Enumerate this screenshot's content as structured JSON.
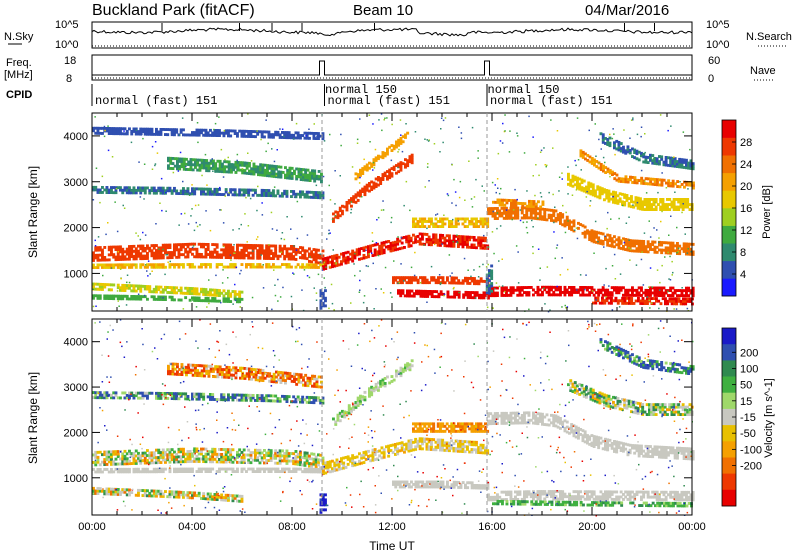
{
  "header": {
    "title": "Buckland Park (fitACF)",
    "beam": "Beam 10",
    "date": "04/Mar/2016"
  },
  "panels": {
    "sky": {
      "label": "N.Sky",
      "ticks": [
        "10^5",
        "10^0"
      ],
      "right_label": "N.Search",
      "right_ticks": [
        "10^5",
        "10^0"
      ]
    },
    "freq": {
      "label_line1": "Freq.",
      "label_line2": "[MHz]",
      "ticks": [
        "18",
        "8"
      ],
      "right_label": "Nave",
      "right_ticks": [
        "60",
        "0"
      ]
    },
    "cpid": {
      "label": "CPID",
      "segments": [
        {
          "text": "normal (fast) 151",
          "start_hour": 0,
          "row": 2
        },
        {
          "text": "normal 150",
          "start_hour": 9.2,
          "row": 1
        },
        {
          "text": "normal (fast) 151",
          "start_hour": 9.3,
          "row": 2
        },
        {
          "text": "normal 150",
          "start_hour": 15.7,
          "row": 1
        },
        {
          "text": "normal (fast) 151",
          "start_hour": 15.8,
          "row": 2
        }
      ]
    }
  },
  "chart_data": [
    {
      "type": "heatmap",
      "name": "power",
      "ylabel": "Slant Range [km]",
      "ylim": [
        180,
        4500
      ],
      "yticks": [
        1000,
        2000,
        3000,
        4000
      ],
      "xlim_hours": [
        0,
        24
      ],
      "colorbar": {
        "label": "Power [dB]",
        "ticks": [
          "4",
          "8",
          "12",
          "16",
          "20",
          "24",
          "28"
        ],
        "colors": [
          "#1a1aff",
          "#2f4fb0",
          "#2f8a6f",
          "#3faa3f",
          "#9fcf20",
          "#e8c800",
          "#f5a000",
          "#f07000",
          "#ee3800",
          "#e80000"
        ]
      },
      "bands": [
        {
          "t": [
            0,
            4,
            8,
            9.2
          ],
          "r": [
            1400,
            1480,
            1430,
            1330
          ],
          "w": 280,
          "v": 26
        },
        {
          "t": [
            0,
            4,
            8,
            9.2
          ],
          "r": [
            1150,
            1160,
            1160,
            1150
          ],
          "w": 90,
          "v": 18
        },
        {
          "t": [
            0,
            3,
            7,
            9.2
          ],
          "r": [
            2820,
            2800,
            2750,
            2700
          ],
          "w": 150,
          "v": 6
        },
        {
          "t": [
            3,
            6,
            9.2
          ],
          "r": [
            3400,
            3300,
            3100
          ],
          "w": 260,
          "v": 9
        },
        {
          "t": [
            0,
            5,
            9.2
          ],
          "r": [
            4100,
            4050,
            3980
          ],
          "w": 130,
          "v": 4
        },
        {
          "t": [
            0,
            2,
            4,
            6
          ],
          "r": [
            700,
            650,
            600,
            520
          ],
          "w": 130,
          "v": 15
        },
        {
          "t": [
            0,
            3,
            6
          ],
          "r": [
            480,
            450,
            400
          ],
          "w": 90,
          "v": 11
        },
        {
          "t": [
            9.2,
            11.2,
            13,
            15.8
          ],
          "r": [
            1200,
            1500,
            1750,
            1650
          ],
          "w": 260,
          "v": 27
        },
        {
          "t": [
            9.6,
            11,
            12.8
          ],
          "r": [
            2200,
            2850,
            3500
          ],
          "w": 180,
          "v": 25
        },
        {
          "t": [
            10.5,
            12.6
          ],
          "r": [
            3100,
            4000
          ],
          "w": 120,
          "v": 19
        },
        {
          "t": [
            12,
            14,
            15.8
          ],
          "r": [
            850,
            850,
            820
          ],
          "w": 150,
          "v": 26
        },
        {
          "t": [
            12.2,
            15.8
          ],
          "r": [
            550,
            500
          ],
          "w": 120,
          "v": 28
        },
        {
          "t": [
            12.8,
            15.8
          ],
          "r": [
            2100,
            2100
          ],
          "w": 200,
          "v": 18
        },
        {
          "t": [
            15.8,
            17.5,
            18.5,
            20,
            21.5,
            24
          ],
          "r": [
            2300,
            2320,
            2250,
            1800,
            1600,
            1520
          ],
          "w": 260,
          "v": 23
        },
        {
          "t": [
            15.8,
            18,
            24
          ],
          "r": [
            600,
            620,
            600
          ],
          "w": 220,
          "v": 29
        },
        {
          "t": [
            20,
            24
          ],
          "r": [
            400,
            380
          ],
          "w": 140,
          "v": 27
        },
        {
          "t": [
            19,
            20.5,
            22,
            24
          ],
          "r": [
            3050,
            2700,
            2500,
            2500
          ],
          "w": 260,
          "v": 16
        },
        {
          "t": [
            20.3,
            22,
            24
          ],
          "r": [
            3950,
            3500,
            3350
          ],
          "w": 180,
          "v": 6
        },
        {
          "t": [
            19.5,
            21,
            24
          ],
          "r": [
            3600,
            3050,
            2900
          ],
          "w": 120,
          "v": 21
        },
        {
          "t": [
            16,
            18
          ],
          "r": [
            2550,
            2500
          ],
          "w": 150,
          "v": 21
        },
        {
          "t": [
            9.1,
            9.35
          ],
          "r": [
            350,
            350
          ],
          "w": 600,
          "v": 4
        },
        {
          "t": [
            15.75,
            15.95
          ],
          "r": [
            800,
            900
          ],
          "w": 600,
          "v": 6
        }
      ]
    },
    {
      "type": "heatmap",
      "name": "velocity",
      "xlabel": "Time UT",
      "ylabel": "Slant Range [km]",
      "ylim": [
        180,
        4500
      ],
      "yticks": [
        1000,
        2000,
        3000,
        4000
      ],
      "xticks": [
        "00:00",
        "04:00",
        "08:00",
        "12:00",
        "16:00",
        "20:00",
        "00:00"
      ],
      "xlim_hours": [
        0,
        24
      ],
      "colorbar": {
        "label": "Velocity [m s^-1]",
        "ticks": [
          "200",
          "100",
          "50",
          "15",
          "-15",
          "-50",
          "-100",
          "-200"
        ],
        "colors": [
          "#1a1ac8",
          "#2f4fb0",
          "#2f8a4f",
          "#3fb040",
          "#9fd86a",
          "#c8c8c0",
          "#e8c000",
          "#f5a000",
          "#f07000",
          "#ee3800",
          "#e80000"
        ]
      },
      "bands": [
        {
          "t": [
            0,
            4,
            8,
            9.2
          ],
          "r": [
            1400,
            1480,
            1430,
            1330
          ],
          "w": 280,
          "v": 0,
          "noise": true
        },
        {
          "t": [
            0,
            4,
            8,
            9.2
          ],
          "r": [
            1150,
            1160,
            1160,
            1150
          ],
          "w": 90,
          "v": 0
        },
        {
          "t": [
            0,
            3,
            7,
            9.2
          ],
          "r": [
            2820,
            2800,
            2750,
            2700
          ],
          "w": 150,
          "v": 60,
          "noise": true
        },
        {
          "t": [
            3,
            6,
            9.2
          ],
          "r": [
            3400,
            3300,
            3100
          ],
          "w": 260,
          "v": -60,
          "noise": true
        },
        {
          "t": [
            0,
            2,
            4,
            6
          ],
          "r": [
            700,
            650,
            600,
            520
          ],
          "w": 130,
          "v": 0,
          "noise": true
        },
        {
          "t": [
            9.2,
            11.2,
            13,
            15.8
          ],
          "r": [
            1200,
            1500,
            1750,
            1650
          ],
          "w": 260,
          "v": -20
        },
        {
          "t": [
            9.6,
            11,
            12.8
          ],
          "r": [
            2200,
            2850,
            3500
          ],
          "w": 180,
          "v": 20
        },
        {
          "t": [
            12,
            14,
            15.8
          ],
          "r": [
            850,
            850,
            820
          ],
          "w": 150,
          "v": 0
        },
        {
          "t": [
            12.8,
            15.8
          ],
          "r": [
            2100,
            2100
          ],
          "w": 200,
          "v": -45
        },
        {
          "t": [
            15.8,
            17.5,
            18.5,
            20,
            21.5,
            24
          ],
          "r": [
            2300,
            2320,
            2250,
            1800,
            1600,
            1520
          ],
          "w": 260,
          "v": 0
        },
        {
          "t": [
            15.8,
            18,
            24
          ],
          "r": [
            600,
            620,
            600
          ],
          "w": 220,
          "v": 0
        },
        {
          "t": [
            16,
            20,
            24
          ],
          "r": [
            450,
            420,
            400
          ],
          "w": 90,
          "v": 40
        },
        {
          "t": [
            19,
            20.5,
            22,
            24
          ],
          "r": [
            3050,
            2700,
            2500,
            2500
          ],
          "w": 260,
          "v": 20,
          "noise": true
        },
        {
          "t": [
            20.3,
            22,
            24
          ],
          "r": [
            3950,
            3500,
            3350
          ],
          "w": 180,
          "v": 80,
          "noise": true
        },
        {
          "t": [
            9.1,
            9.35
          ],
          "r": [
            350,
            350
          ],
          "w": 600,
          "v": 200,
          "noise": true
        }
      ]
    }
  ]
}
